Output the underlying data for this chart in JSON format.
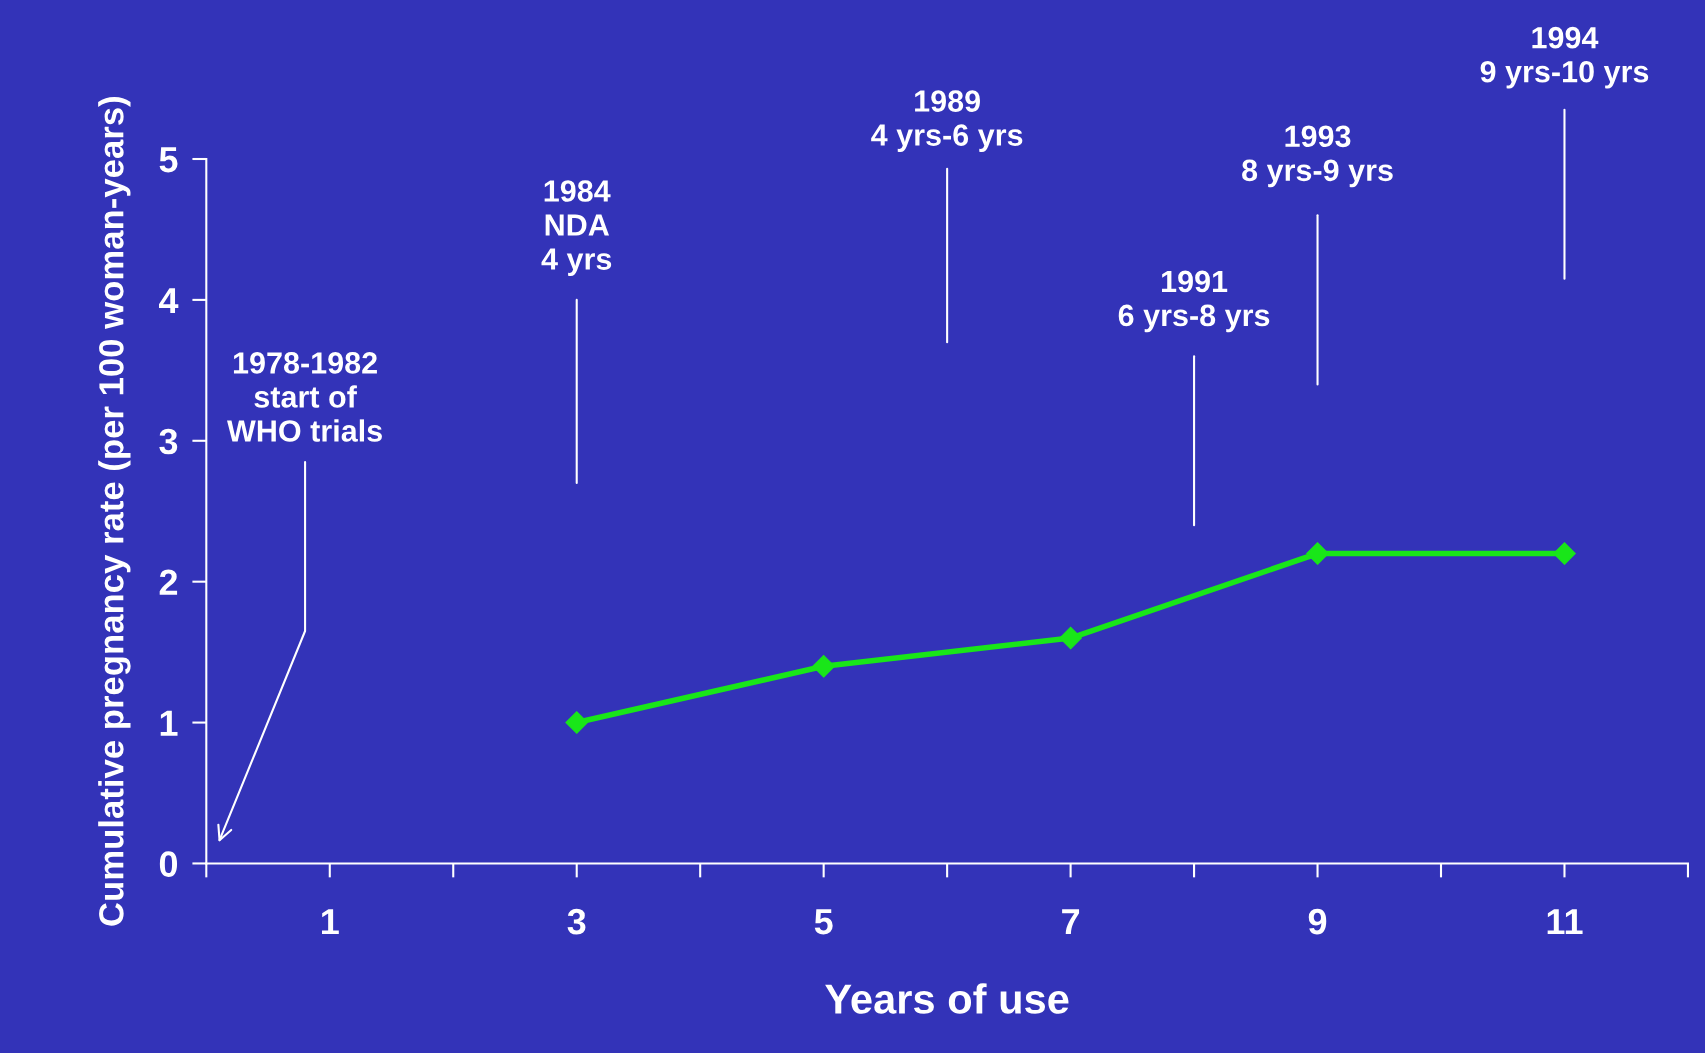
{
  "chart_data": {
    "type": "line",
    "xlabel": "Years of use",
    "ylabel": "Cumulative pregnancy rate (per 100 woman-years)",
    "x": [
      3,
      5,
      7,
      9,
      11
    ],
    "series": [
      {
        "color": "#19e619",
        "values": [
          1,
          1.4,
          1.6,
          2.2,
          2.2
        ]
      }
    ],
    "marker": "diamond",
    "line_style": "solid",
    "grid": false,
    "xlim": [
      0,
      12
    ],
    "xticks": [
      {
        "value": 0,
        "label": null
      },
      1,
      {
        "value": 2,
        "label": null
      },
      3,
      {
        "value": 4,
        "label": null
      },
      5,
      {
        "value": 6,
        "label": null
      },
      7,
      {
        "value": 8,
        "label": null
      },
      9,
      {
        "value": 10,
        "label": null
      },
      11,
      {
        "value": 12,
        "label": null
      }
    ],
    "ylim": [
      0,
      5
    ],
    "yticks": [
      0,
      1,
      2,
      3,
      4,
      5
    ],
    "annotations": [
      "1978-1982\nstart of\nWHO trials",
      "1984\nNDA\n4 yrs",
      "1989\n4 yrs-6 yrs",
      "1991\n6 yrs-8 yrs",
      "1993\n8 yrs-9 yrs",
      "1994\n9 yrs-10 yrs"
    ]
  }
}
